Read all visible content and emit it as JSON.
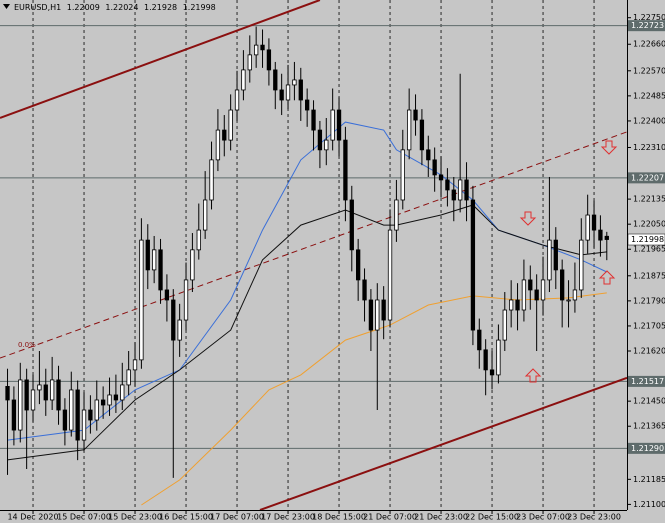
{
  "chart_data": {
    "type": "candlestick",
    "symbol": "EURUSD,H1",
    "fibo_label": "0.0%",
    "xlim": [
      -1.18,
      97.17
    ],
    "ylim": [
      1.21081,
      1.2281
    ],
    "grid": true,
    "up_color": "#ffffff",
    "down_color": "#000000",
    "wick_color": "#000000",
    "xticks": [
      {
        "value": 4,
        "label": "14 Dec 2020"
      },
      {
        "value": 12,
        "label": "15 Dec 07:00"
      },
      {
        "value": 20,
        "label": "15 Dec 23:00"
      },
      {
        "value": 28,
        "label": "16 Dec 15:00"
      },
      {
        "value": 36,
        "label": "17 Dec 07:00"
      },
      {
        "value": 44,
        "label": "17 Dec 23:00"
      },
      {
        "value": 52,
        "label": "18 Dec 15:00"
      },
      {
        "value": 60,
        "label": "21 Dec 07:00"
      },
      {
        "value": 68,
        "label": "21 Dec 23:00"
      },
      {
        "value": 76,
        "label": "22 Dec 15:00"
      },
      {
        "value": 84,
        "label": "23 Dec 07:00"
      },
      {
        "value": 92,
        "label": "23 Dec 23:00"
      }
    ],
    "yticks": [
      {
        "value": 1.2275,
        "label": "1.22750"
      },
      {
        "value": 1.2266,
        "label": "1.22660"
      },
      {
        "value": 1.2257,
        "label": "1.22570"
      },
      1.22485,
      {
        "value": 1.224,
        "label": "1.22400"
      },
      {
        "value": 1.2231,
        "label": "1.22310"
      },
      1.22135,
      {
        "value": 1.2205,
        "label": "1.22050"
      },
      1.21965,
      1.21875,
      {
        "value": 1.2179,
        "label": "1.21790"
      },
      1.21705,
      {
        "value": 1.2162,
        "label": "1.21620"
      },
      {
        "value": 1.2145,
        "label": "1.21450"
      },
      1.21365,
      1.21185,
      {
        "value": 1.211,
        "label": "1.21100"
      }
    ],
    "levels": [
      1.22723,
      1.22207,
      1.21517,
      {
        "value": 1.2129,
        "label": "1.21290"
      }
    ],
    "level_color": "#5e6b6b",
    "open": [
      1.215,
      1.21454,
      1.21352,
      1.21522,
      1.2142,
      1.21488,
      1.21505,
      1.21454,
      1.21522,
      1.2142,
      1.21352,
      1.21488,
      1.21318,
      1.2142,
      1.21386,
      1.21454,
      1.21437,
      1.21471,
      1.21454,
      1.21505,
      1.21556,
      1.2159,
      1.21996,
      1.21895,
      1.21963,
      1.21827,
      1.21793,
      1.21657,
      1.21725,
      1.21861,
      1.21963,
      1.2203,
      1.22132,
      1.22268,
      1.22369,
      1.22335,
      1.22437,
      1.22505,
      1.22573,
      1.22624,
      1.22657,
      1.22641,
      1.22573,
      1.22505,
      1.22471,
      1.22522,
      1.22539,
      1.22471,
      1.22437,
      1.22369,
      1.22302,
      1.22335,
      1.22437,
      1.22335,
      1.22132,
      1.21963,
      1.21861,
      1.21793,
      1.21691,
      1.21793,
      1.21725,
      1.2203,
      1.22132,
      1.22302,
      1.22437,
      1.22403,
      1.22302,
      1.22268,
      1.22217,
      1.222,
      1.22166,
      1.22132,
      1.222,
      1.22132,
      1.21691,
      1.21624,
      1.21556,
      1.21539,
      1.21657,
      1.21759,
      1.21793,
      1.21759,
      1.21861,
      1.21827,
      1.21793,
      1.21861,
      1.21996,
      1.21895,
      1.21793,
      1.21793,
      1.21827,
      1.21996,
      1.22081,
      1.2203,
      1.22009
    ],
    "high": [
      1.2156,
      1.215,
      1.2158,
      1.2156,
      1.2154,
      1.2162,
      1.2156,
      1.216,
      1.2157,
      1.2146,
      1.2155,
      1.2152,
      1.2148,
      1.2147,
      1.2152,
      1.215,
      1.2153,
      1.2154,
      1.2158,
      1.2162,
      1.2165,
      1.2207,
      1.2205,
      1.2201,
      1.22,
      1.2188,
      1.2183,
      1.2178,
      1.2192,
      1.2202,
      1.2212,
      1.2223,
      1.2233,
      1.2244,
      1.2242,
      1.2249,
      1.2257,
      1.2264,
      1.2269,
      1.2272,
      1.2271,
      1.2268,
      1.226,
      1.2256,
      1.2259,
      1.226,
      1.2258,
      1.2251,
      1.2247,
      1.224,
      1.2241,
      1.2251,
      1.2248,
      1.2238,
      1.2218,
      1.22,
      1.219,
      1.2183,
      1.2185,
      1.2184,
      1.221,
      1.222,
      1.2237,
      1.2251,
      1.2249,
      1.2244,
      1.2235,
      1.2231,
      1.2228,
      1.2224,
      1.2221,
      1.2256,
      1.2226,
      1.2218,
      1.2173,
      1.2166,
      1.2162,
      1.2171,
      1.2182,
      1.2186,
      1.2185,
      1.2193,
      1.2191,
      1.2188,
      1.2194,
      1.2221,
      1.2204,
      1.2193,
      1.2186,
      1.2192,
      1.2207,
      1.2215,
      1.2213,
      1.2208,
      1.22024
    ],
    "low": [
      1.212,
      1.213,
      1.2131,
      1.2122,
      1.2138,
      1.2144,
      1.214,
      1.2142,
      1.2137,
      1.213,
      1.2133,
      1.2125,
      1.2128,
      1.2134,
      1.2135,
      1.2139,
      1.214,
      1.2141,
      1.2142,
      1.2147,
      1.215,
      1.2156,
      1.2183,
      1.2185,
      1.2178,
      1.2172,
      1.2119,
      1.216,
      1.2169,
      1.2182,
      1.2193,
      1.22,
      1.221,
      1.2223,
      1.2228,
      1.223,
      1.224,
      1.2247,
      1.2253,
      1.2258,
      1.2258,
      1.2252,
      1.2244,
      1.2242,
      1.2244,
      1.2247,
      1.224,
      1.2238,
      1.223,
      1.2224,
      1.2225,
      1.223,
      1.2228,
      1.2206,
      1.2189,
      1.2179,
      1.2172,
      1.2162,
      1.2142,
      1.2166,
      1.217,
      1.2199,
      1.221,
      1.2227,
      1.2235,
      1.2225,
      1.2221,
      1.2216,
      1.2214,
      1.2211,
      1.2206,
      1.2209,
      1.2206,
      1.2164,
      1.2156,
      1.2147,
      1.2149,
      1.2151,
      1.2162,
      1.217,
      1.2169,
      1.2172,
      1.2176,
      1.2162,
      1.2174,
      1.2182,
      1.2183,
      1.217,
      1.217,
      1.2175,
      1.218,
      1.2195,
      1.2197,
      1.2194,
      1.21928
    ],
    "close": [
      1.21454,
      1.21352,
      1.21522,
      1.2142,
      1.21488,
      1.21505,
      1.21454,
      1.21522,
      1.2142,
      1.21352,
      1.21488,
      1.21318,
      1.2142,
      1.21386,
      1.21454,
      1.21437,
      1.21471,
      1.21454,
      1.21505,
      1.21556,
      1.2159,
      1.21996,
      1.21895,
      1.21963,
      1.21827,
      1.21793,
      1.21657,
      1.21725,
      1.21861,
      1.21963,
      1.2203,
      1.22132,
      1.22268,
      1.22369,
      1.22335,
      1.22437,
      1.22505,
      1.22573,
      1.22624,
      1.22657,
      1.22641,
      1.22573,
      1.22505,
      1.22471,
      1.22522,
      1.22539,
      1.22471,
      1.22437,
      1.22369,
      1.22302,
      1.22335,
      1.22437,
      1.22335,
      1.22132,
      1.21963,
      1.21861,
      1.21793,
      1.21691,
      1.21793,
      1.21725,
      1.2203,
      1.22132,
      1.22302,
      1.22437,
      1.22403,
      1.22302,
      1.22268,
      1.22217,
      1.222,
      1.22166,
      1.22132,
      1.222,
      1.22132,
      1.21691,
      1.21624,
      1.21556,
      1.21539,
      1.21657,
      1.21759,
      1.21793,
      1.21759,
      1.21861,
      1.21827,
      1.21793,
      1.21861,
      1.21996,
      1.21895,
      1.21793,
      1.21793,
      1.21827,
      1.21996,
      1.22081,
      1.2203,
      1.21996,
      1.21998
    ],
    "series": [
      {
        "color": "#3a6fd8",
        "x": [
          0,
          12,
          20,
          27,
          35,
          40,
          46,
          53,
          59,
          61,
          68,
          73,
          77,
          84,
          90,
          94
        ],
        "values": [
          1.21318,
          1.21352,
          1.21488,
          1.21556,
          1.21793,
          1.2203,
          1.22268,
          1.22396,
          1.22369,
          1.22302,
          1.22217,
          1.22132,
          1.2203,
          1.21979,
          1.21929,
          1.21888
        ]
      },
      {
        "color": "#111111",
        "x": [
          0,
          12,
          20,
          27,
          35,
          40,
          46,
          53,
          59,
          61,
          68,
          73,
          77,
          84,
          90,
          94
        ],
        "values": [
          1.21251,
          1.21285,
          1.21454,
          1.21556,
          1.21691,
          1.21929,
          1.22047,
          1.22098,
          1.22047,
          1.22047,
          1.22081,
          1.22115,
          1.2203,
          1.21979,
          1.21946,
          1.21956
        ]
      },
      {
        "color": "#f0a030",
        "x": [
          21,
          27,
          35,
          41,
          46,
          53,
          60,
          66,
          73,
          80,
          88,
          94
        ],
        "values": [
          1.21098,
          1.21183,
          1.21352,
          1.21488,
          1.21539,
          1.21657,
          1.21708,
          1.21776,
          1.21807,
          1.21793,
          1.218,
          1.21817
        ]
      }
    ],
    "trendlines": [
      {
        "color": "#8b1010",
        "style": "solid",
        "x": [
          -1.18,
          49
        ],
        "values": [
          1.2241,
          1.2281
        ]
      },
      {
        "color": "#8b1010",
        "style": "solid",
        "x": [
          39.6,
          97.17
        ],
        "values": [
          1.21081,
          1.21529
        ]
      },
      {
        "color": "#8b1010",
        "style": "dashed",
        "x": [
          -1.18,
          97.17
        ],
        "values": [
          1.21596,
          1.22363
        ]
      }
    ]
  }
}
